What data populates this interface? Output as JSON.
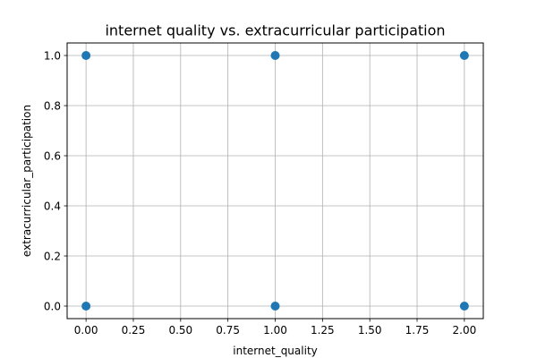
{
  "chart_data": {
    "type": "scatter",
    "title": "internet quality vs. extracurricular participation",
    "xlabel": "internet_quality",
    "ylabel": "extracurricular_participation",
    "xlim": [
      -0.1,
      2.1
    ],
    "ylim": [
      -0.05,
      1.05
    ],
    "x_ticks": [
      0.0,
      0.25,
      0.5,
      0.75,
      1.0,
      1.25,
      1.5,
      1.75,
      2.0
    ],
    "x_tick_labels": [
      "0.00",
      "0.25",
      "0.50",
      "0.75",
      "1.00",
      "1.25",
      "1.50",
      "1.75",
      "2.00"
    ],
    "y_ticks": [
      0.0,
      0.2,
      0.4,
      0.6,
      0.8,
      1.0
    ],
    "y_tick_labels": [
      "0.0",
      "0.2",
      "0.4",
      "0.6",
      "0.8",
      "1.0"
    ],
    "grid": true,
    "marker_color": "#1f77b4",
    "points": [
      {
        "x": 0,
        "y": 1
      },
      {
        "x": 1,
        "y": 1
      },
      {
        "x": 2,
        "y": 1
      },
      {
        "x": 0,
        "y": 0
      },
      {
        "x": 1,
        "y": 0
      },
      {
        "x": 2,
        "y": 0
      }
    ]
  }
}
